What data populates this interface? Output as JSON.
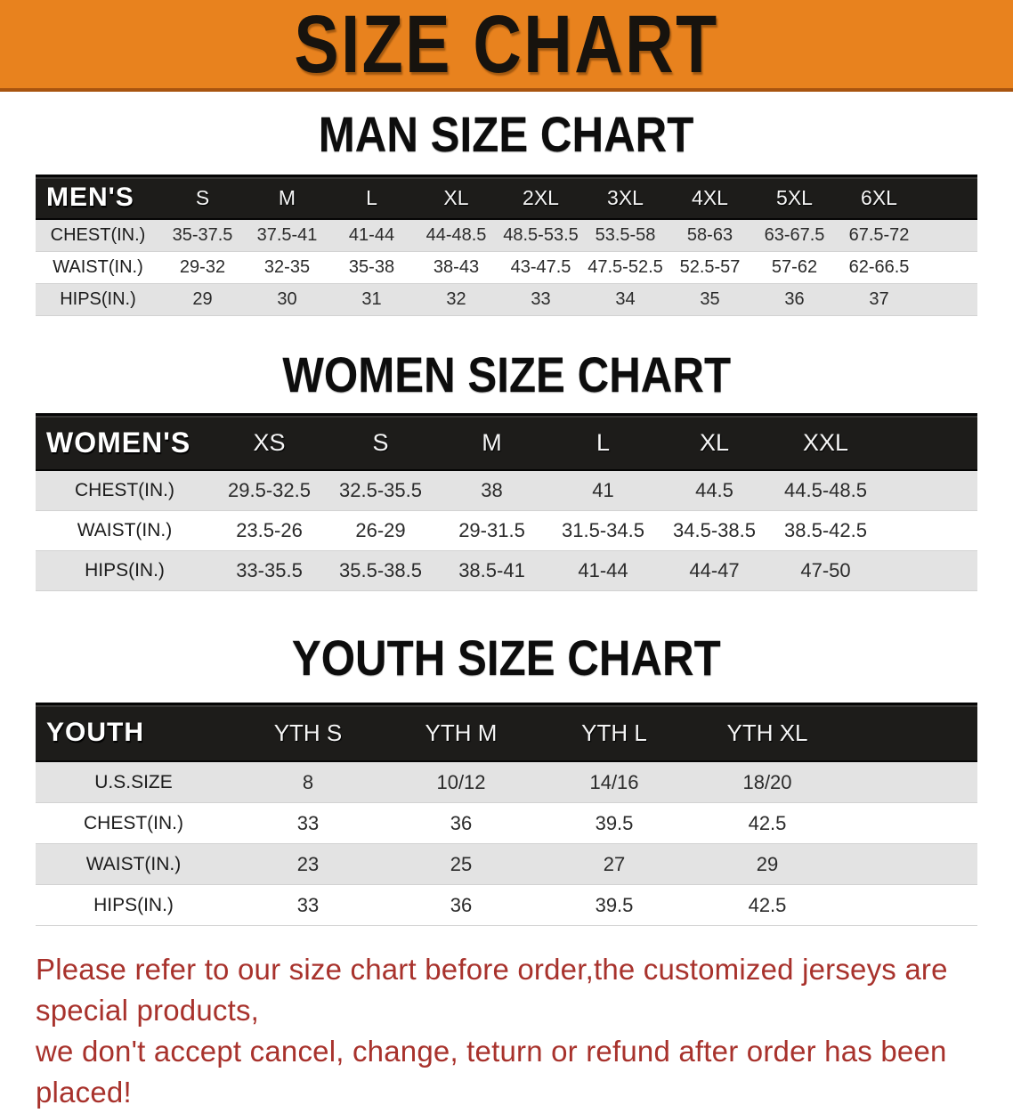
{
  "theme": {
    "banner-bg": "#E8821E",
    "banner-border": "#A8540F",
    "band-bg": "#1D1C1A",
    "row-alt-bg": "#E3E3E3",
    "disclaimer-color": "#A8322C"
  },
  "banner": {
    "title": "SIZE CHART"
  },
  "men": {
    "heading": "MAN SIZE CHART",
    "band_label": "MEN'S",
    "columns": [
      "S",
      "M",
      "L",
      "XL",
      "2XL",
      "3XL",
      "4XL",
      "5XL",
      "6XL"
    ],
    "rows": [
      {
        "label": "CHEST(IN.)",
        "values": [
          "35-37.5",
          "37.5-41",
          "41-44",
          "44-48.5",
          "48.5-53.5",
          "53.5-58",
          "58-63",
          "63-67.5",
          "67.5-72"
        ]
      },
      {
        "label": "WAIST(IN.)",
        "values": [
          "29-32",
          "32-35",
          "35-38",
          "38-43",
          "43-47.5",
          "47.5-52.5",
          "52.5-57",
          "57-62",
          "62-66.5"
        ]
      },
      {
        "label": "HIPS(IN.)",
        "values": [
          "29",
          "30",
          "31",
          "32",
          "33",
          "34",
          "35",
          "36",
          "37"
        ]
      }
    ]
  },
  "women": {
    "heading": "WOMEN SIZE CHART",
    "band_label": "WOMEN'S",
    "columns": [
      "XS",
      "S",
      "M",
      "L",
      "XL",
      "XXL"
    ],
    "rows": [
      {
        "label": "CHEST(IN.)",
        "values": [
          "29.5-32.5",
          "32.5-35.5",
          "38",
          "41",
          "44.5",
          "44.5-48.5"
        ]
      },
      {
        "label": "WAIST(IN.)",
        "values": [
          "23.5-26",
          "26-29",
          "29-31.5",
          "31.5-34.5",
          "34.5-38.5",
          "38.5-42.5"
        ]
      },
      {
        "label": "HIPS(IN.)",
        "values": [
          "33-35.5",
          "35.5-38.5",
          "38.5-41",
          "41-44",
          "44-47",
          "47-50"
        ]
      }
    ]
  },
  "youth": {
    "heading": "YOUTH SIZE CHART",
    "band_label": "YOUTH",
    "columns": [
      "YTH S",
      "YTH M",
      "YTH L",
      "YTH XL"
    ],
    "rows": [
      {
        "label": "U.S.SIZE",
        "values": [
          "8",
          "10/12",
          "14/16",
          "18/20"
        ]
      },
      {
        "label": "CHEST(IN.)",
        "values": [
          "33",
          "36",
          "39.5",
          "42.5"
        ]
      },
      {
        "label": "WAIST(IN.)",
        "values": [
          "23",
          "25",
          "27",
          "29"
        ]
      },
      {
        "label": "HIPS(IN.)",
        "values": [
          "33",
          "36",
          "39.5",
          "42.5"
        ]
      }
    ]
  },
  "disclaimer": {
    "line1": "Please refer to our size chart before order,the customized jerseys are special products,",
    "line2": "we don't accept cancel, change, teturn or refund after order has been placed!"
  }
}
